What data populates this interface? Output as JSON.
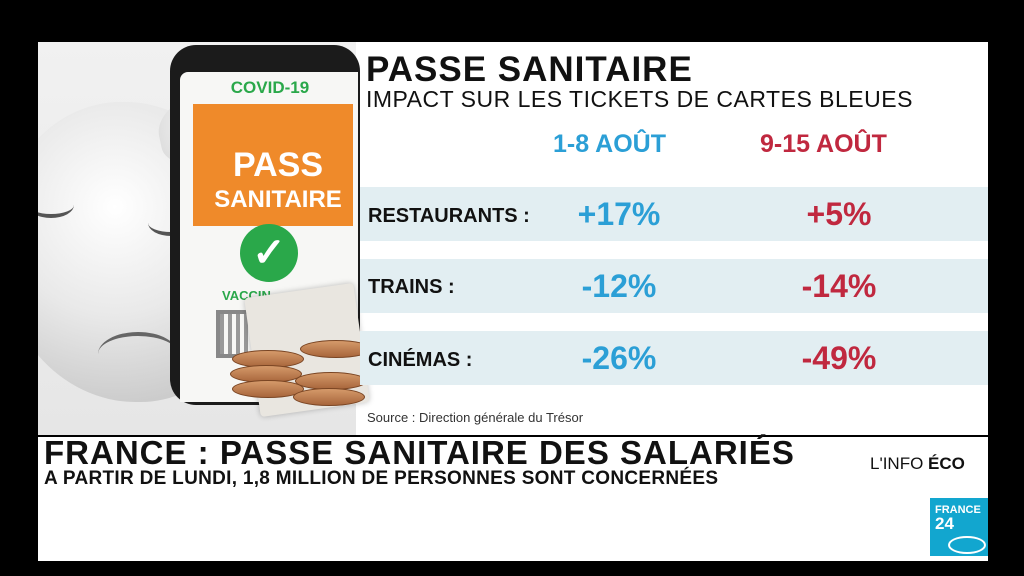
{
  "infographic": {
    "title": "PASSE SANITAIRE",
    "subtitle": "IMPACT SUR LES TICKETS DE CARTES BLEUES",
    "columns": [
      "1-8 AOÛT",
      "9-15 AOÛT"
    ],
    "rows": [
      {
        "label": "RESTAURANTS :",
        "values": [
          "+17%",
          "+5%"
        ]
      },
      {
        "label": "TRAINS :",
        "values": [
          "-12%",
          "-14%"
        ]
      },
      {
        "label": "CINÉMAS :",
        "values": [
          "-26%",
          "-49%"
        ]
      }
    ],
    "source": "Source : Direction générale du Trésor",
    "colors": {
      "period1": "#2b9fd6",
      "period2": "#c0283f",
      "row_bg": "#e2eef2"
    }
  },
  "illustration": {
    "covid_label": "COVID-19",
    "pass_line1": "PASS",
    "pass_line2": "SANITAIRE",
    "vaccin_label": "VACCIN"
  },
  "lower_third": {
    "headline": "FRANCE : PASSE SANITAIRE DES SALARIÉS",
    "strap": "A PARTIR DE LUNDI, 1,8 MILLION DE PERSONNES SONT CONCERNÉES",
    "program_prefix": "L'INFO",
    "program_name": "ÉCO"
  },
  "channel": {
    "name_line1": "FRANCE",
    "name_line2": "24",
    "brand_color": "#12a6cf"
  }
}
